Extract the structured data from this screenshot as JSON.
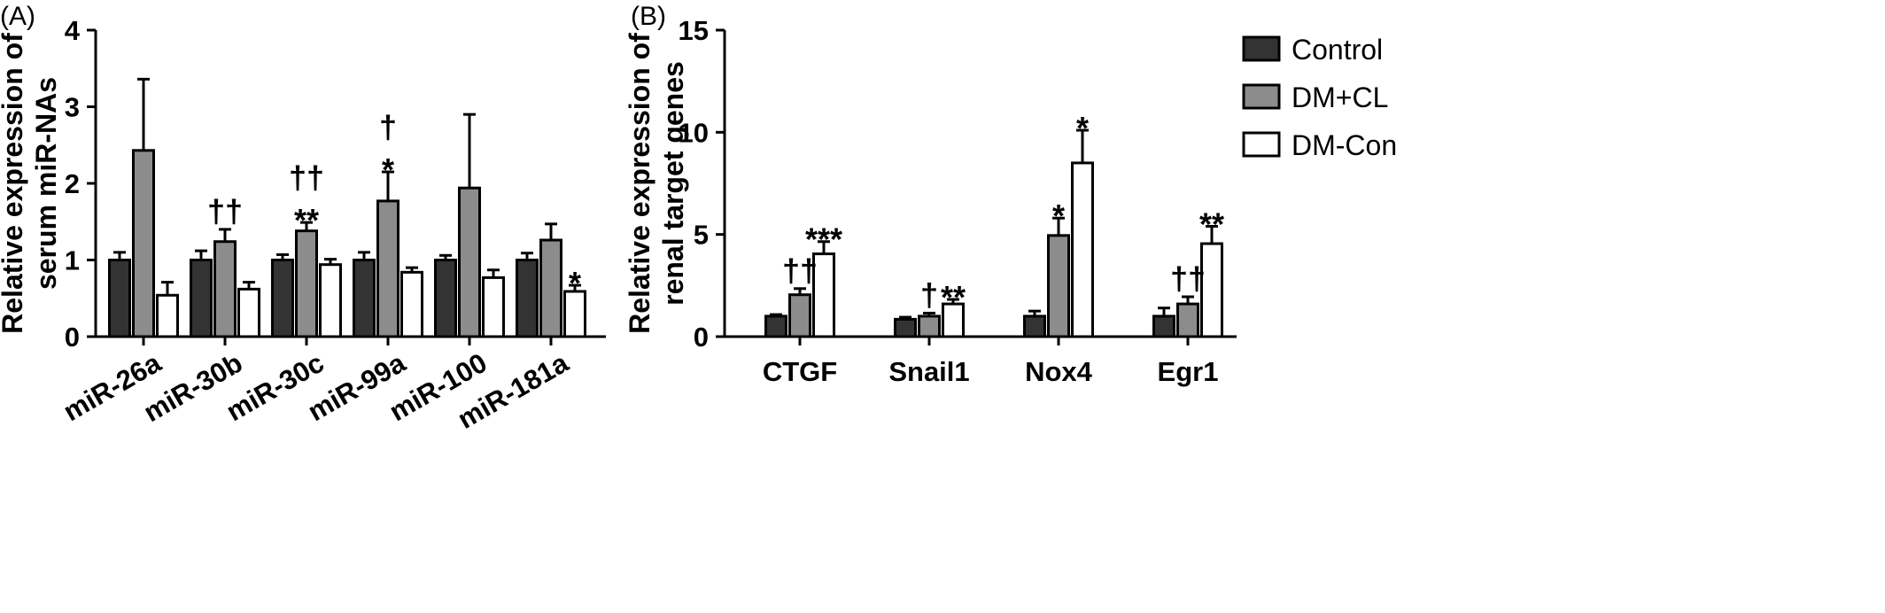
{
  "colors": {
    "Control": "#333333",
    "DM+CL": "#8c8c8c",
    "DM-Con": "#ffffff",
    "stroke": "#000000"
  },
  "legend": [
    "Control",
    "DM+CL",
    "DM-Con"
  ],
  "chart_data": [
    {
      "type": "bar",
      "panel_label": "(A)",
      "ylabel": [
        "Relative expression of",
        "serum miR-NAs"
      ],
      "ylim": [
        0,
        4
      ],
      "yticks": [
        0,
        1,
        2,
        3,
        4
      ],
      "categories": [
        "miR-26a",
        "miR-30b",
        "miR-30c",
        "miR-99a",
        "miR-100",
        "miR-181a"
      ],
      "series": [
        {
          "name": "Control",
          "values": [
            1.0,
            1.0,
            1.0,
            1.0,
            1.0,
            1.0
          ],
          "errors": [
            0.1,
            0.12,
            0.07,
            0.1,
            0.06,
            0.09
          ]
        },
        {
          "name": "DM+CL",
          "values": [
            2.43,
            1.24,
            1.38,
            1.77,
            1.94,
            1.26
          ],
          "errors": [
            0.93,
            0.16,
            0.11,
            0.38,
            0.96,
            0.21
          ]
        },
        {
          "name": "DM-Con",
          "values": [
            0.54,
            0.62,
            0.94,
            0.84,
            0.77,
            0.59
          ],
          "errors": [
            0.17,
            0.09,
            0.07,
            0.06,
            0.1,
            0.08
          ]
        }
      ],
      "annotations": [
        {
          "category": 1,
          "series": 1,
          "lines": [
            "††"
          ]
        },
        {
          "category": 2,
          "series": 1,
          "lines": [
            "††",
            "**"
          ]
        },
        {
          "category": 3,
          "series": 1,
          "lines": [
            "†",
            "*"
          ]
        },
        {
          "category": 5,
          "series": 2,
          "lines": [
            "*"
          ]
        }
      ]
    },
    {
      "type": "bar",
      "panel_label": "(B)",
      "ylabel": [
        "Relative expression of",
        "renal target genes"
      ],
      "ylim": [
        0,
        15
      ],
      "yticks": [
        0,
        5,
        10,
        15
      ],
      "categories": [
        "CTGF",
        "Snail1",
        "Nox4",
        "Egr1"
      ],
      "series": [
        {
          "name": "Control",
          "values": [
            1.0,
            0.85,
            1.0,
            1.0
          ],
          "errors": [
            0.08,
            0.1,
            0.25,
            0.4
          ]
        },
        {
          "name": "DM+CL",
          "values": [
            2.05,
            1.0,
            4.95,
            1.6
          ],
          "errors": [
            0.3,
            0.15,
            0.85,
            0.35
          ]
        },
        {
          "name": "DM-Con",
          "values": [
            4.05,
            1.6,
            8.5,
            4.55
          ],
          "errors": [
            0.6,
            0.22,
            1.6,
            0.85
          ]
        }
      ],
      "annotations": [
        {
          "category": 0,
          "series": 1,
          "lines": [
            "††"
          ]
        },
        {
          "category": 0,
          "series": 2,
          "lines": [
            "***"
          ]
        },
        {
          "category": 1,
          "series": 1,
          "lines": [
            "†"
          ]
        },
        {
          "category": 1,
          "series": 2,
          "lines": [
            "**"
          ]
        },
        {
          "category": 2,
          "series": 1,
          "lines": [
            "*"
          ]
        },
        {
          "category": 2,
          "series": 2,
          "lines": [
            "*"
          ]
        },
        {
          "category": 3,
          "series": 1,
          "lines": [
            "††"
          ]
        },
        {
          "category": 3,
          "series": 2,
          "lines": [
            "**"
          ]
        }
      ]
    }
  ]
}
